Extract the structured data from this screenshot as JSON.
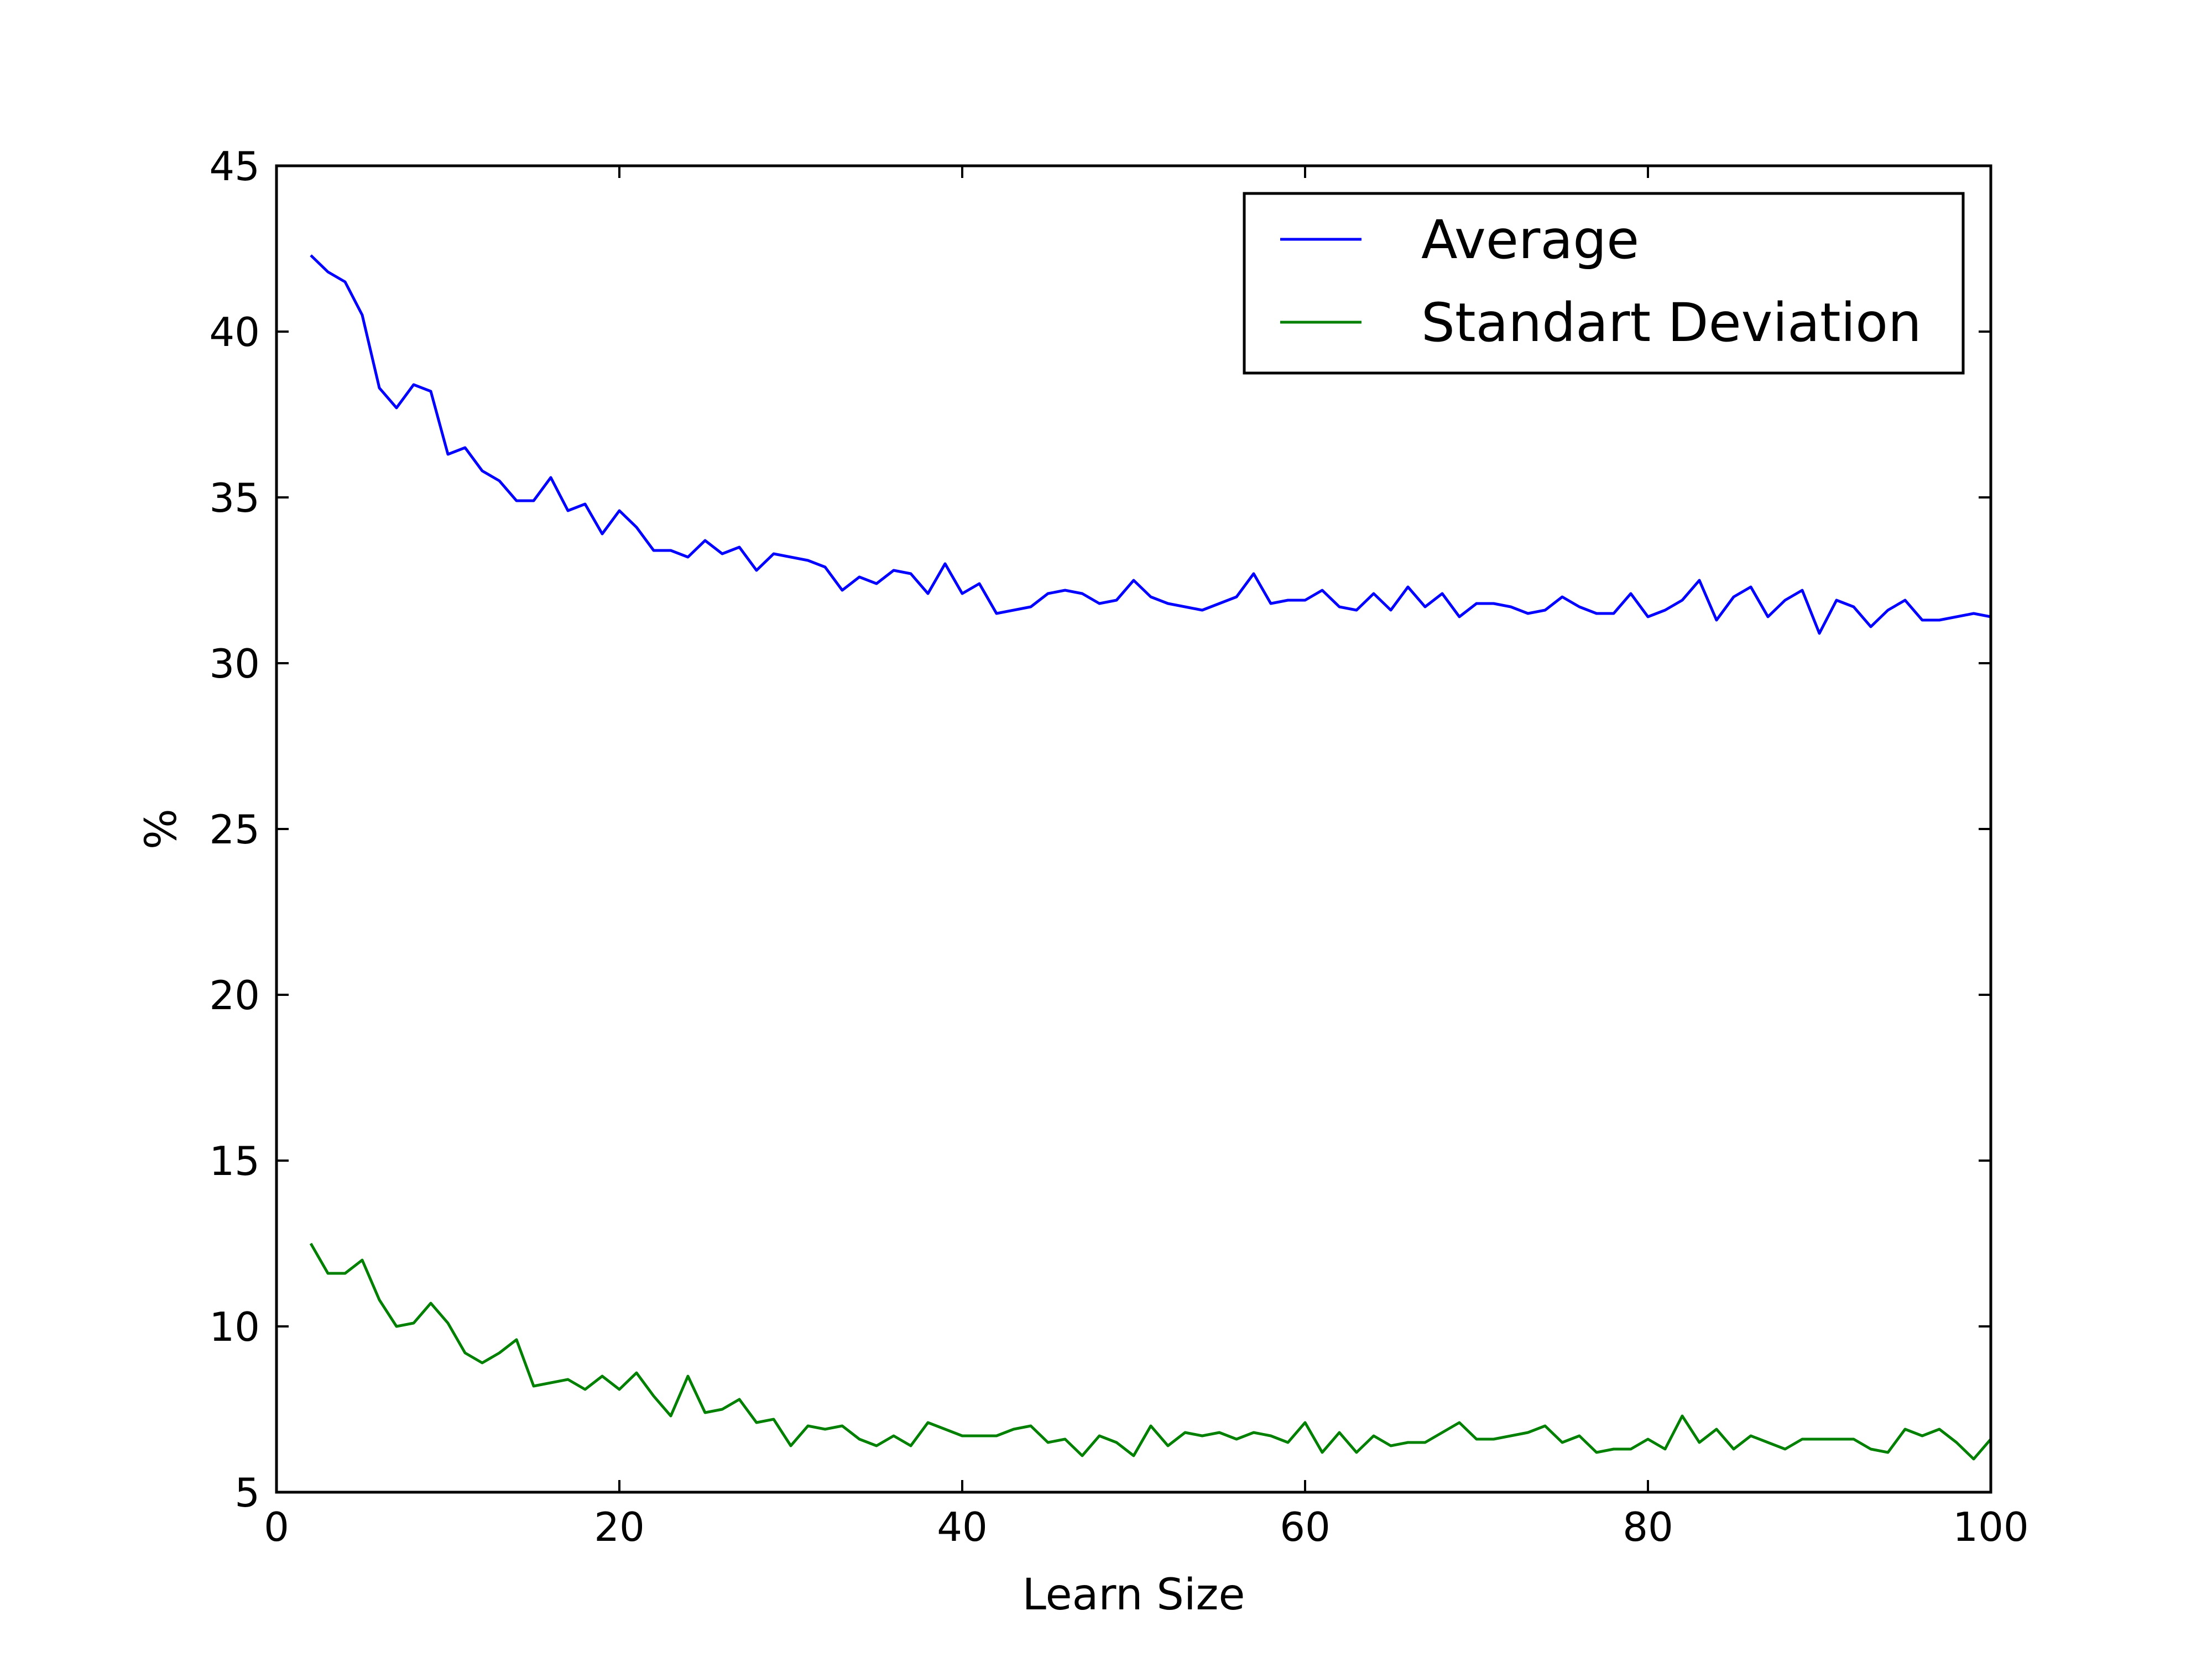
{
  "chart_data": {
    "type": "line",
    "title": "",
    "xlabel": "Learn Size",
    "ylabel": "%",
    "xlim": [
      0,
      100
    ],
    "ylim": [
      5,
      45
    ],
    "xticks": [
      0,
      20,
      40,
      60,
      80,
      100
    ],
    "yticks": [
      5,
      10,
      15,
      20,
      25,
      30,
      35,
      40,
      45
    ],
    "grid": false,
    "legend_position": "top-right",
    "x": [
      2,
      3,
      4,
      5,
      6,
      7,
      8,
      9,
      10,
      11,
      12,
      13,
      14,
      15,
      16,
      17,
      18,
      19,
      20,
      21,
      22,
      23,
      24,
      25,
      26,
      27,
      28,
      29,
      30,
      31,
      32,
      33,
      34,
      35,
      36,
      37,
      38,
      39,
      40,
      41,
      42,
      43,
      44,
      45,
      46,
      47,
      48,
      49,
      50,
      51,
      52,
      53,
      54,
      55,
      56,
      57,
      58,
      59,
      60,
      61,
      62,
      63,
      64,
      65,
      66,
      67,
      68,
      69,
      70,
      71,
      72,
      73,
      74,
      75,
      76,
      77,
      78,
      79,
      80,
      81,
      82,
      83,
      84,
      85,
      86,
      87,
      88,
      89,
      90,
      91,
      92,
      93,
      94,
      95,
      96,
      97,
      98,
      99,
      100
    ],
    "series": [
      {
        "name": "Average",
        "color": "#0000ff",
        "values": [
          42.3,
          41.8,
          41.5,
          40.5,
          38.3,
          37.7,
          38.4,
          38.2,
          36.3,
          36.5,
          35.8,
          35.5,
          34.9,
          34.9,
          35.6,
          34.6,
          34.8,
          33.9,
          34.6,
          34.1,
          33.4,
          33.4,
          33.2,
          33.7,
          33.3,
          33.5,
          32.8,
          33.3,
          33.2,
          33.1,
          32.9,
          32.2,
          32.6,
          32.4,
          32.8,
          32.7,
          32.1,
          33.0,
          32.1,
          32.4,
          31.5,
          31.6,
          31.7,
          32.1,
          32.2,
          32.1,
          31.8,
          31.9,
          32.5,
          32.0,
          31.8,
          31.7,
          31.6,
          31.8,
          32.0,
          32.7,
          31.8,
          31.9,
          31.9,
          32.2,
          31.7,
          31.6,
          32.1,
          31.6,
          32.3,
          31.7,
          32.1,
          31.4,
          31.8,
          31.8,
          31.7,
          31.5,
          31.6,
          32.0,
          31.7,
          31.5,
          31.5,
          32.1,
          31.4,
          31.6,
          31.9,
          32.5,
          31.3,
          32.0,
          32.3,
          31.4,
          31.9,
          32.2,
          30.9,
          31.9,
          31.7,
          31.1,
          31.6,
          31.9,
          31.3,
          31.3,
          31.4,
          31.5,
          31.4
        ]
      },
      {
        "name": "Standart Deviation",
        "color": "#008000",
        "values": [
          12.5,
          11.6,
          11.6,
          12.0,
          10.8,
          10.0,
          10.1,
          10.7,
          10.1,
          9.2,
          8.9,
          9.2,
          9.6,
          8.2,
          8.3,
          8.4,
          8.1,
          8.5,
          8.1,
          8.6,
          7.9,
          7.3,
          8.5,
          7.4,
          7.5,
          7.8,
          7.1,
          7.2,
          6.4,
          7.0,
          6.9,
          7.0,
          6.6,
          6.4,
          6.7,
          6.4,
          7.1,
          6.9,
          6.7,
          6.7,
          6.7,
          6.9,
          7.0,
          6.5,
          6.6,
          6.1,
          6.7,
          6.5,
          6.1,
          7.0,
          6.4,
          6.8,
          6.7,
          6.8,
          6.6,
          6.8,
          6.7,
          6.5,
          7.1,
          6.2,
          6.8,
          6.2,
          6.7,
          6.4,
          6.5,
          6.5,
          6.8,
          7.1,
          6.6,
          6.6,
          6.7,
          6.8,
          7.0,
          6.5,
          6.7,
          6.2,
          6.3,
          6.3,
          6.6,
          6.3,
          7.3,
          6.5,
          6.9,
          6.3,
          6.7,
          6.5,
          6.3,
          6.6,
          6.6,
          6.6,
          6.6,
          6.3,
          6.2,
          6.9,
          6.7,
          6.9,
          6.5,
          6.0,
          6.6
        ]
      }
    ]
  }
}
